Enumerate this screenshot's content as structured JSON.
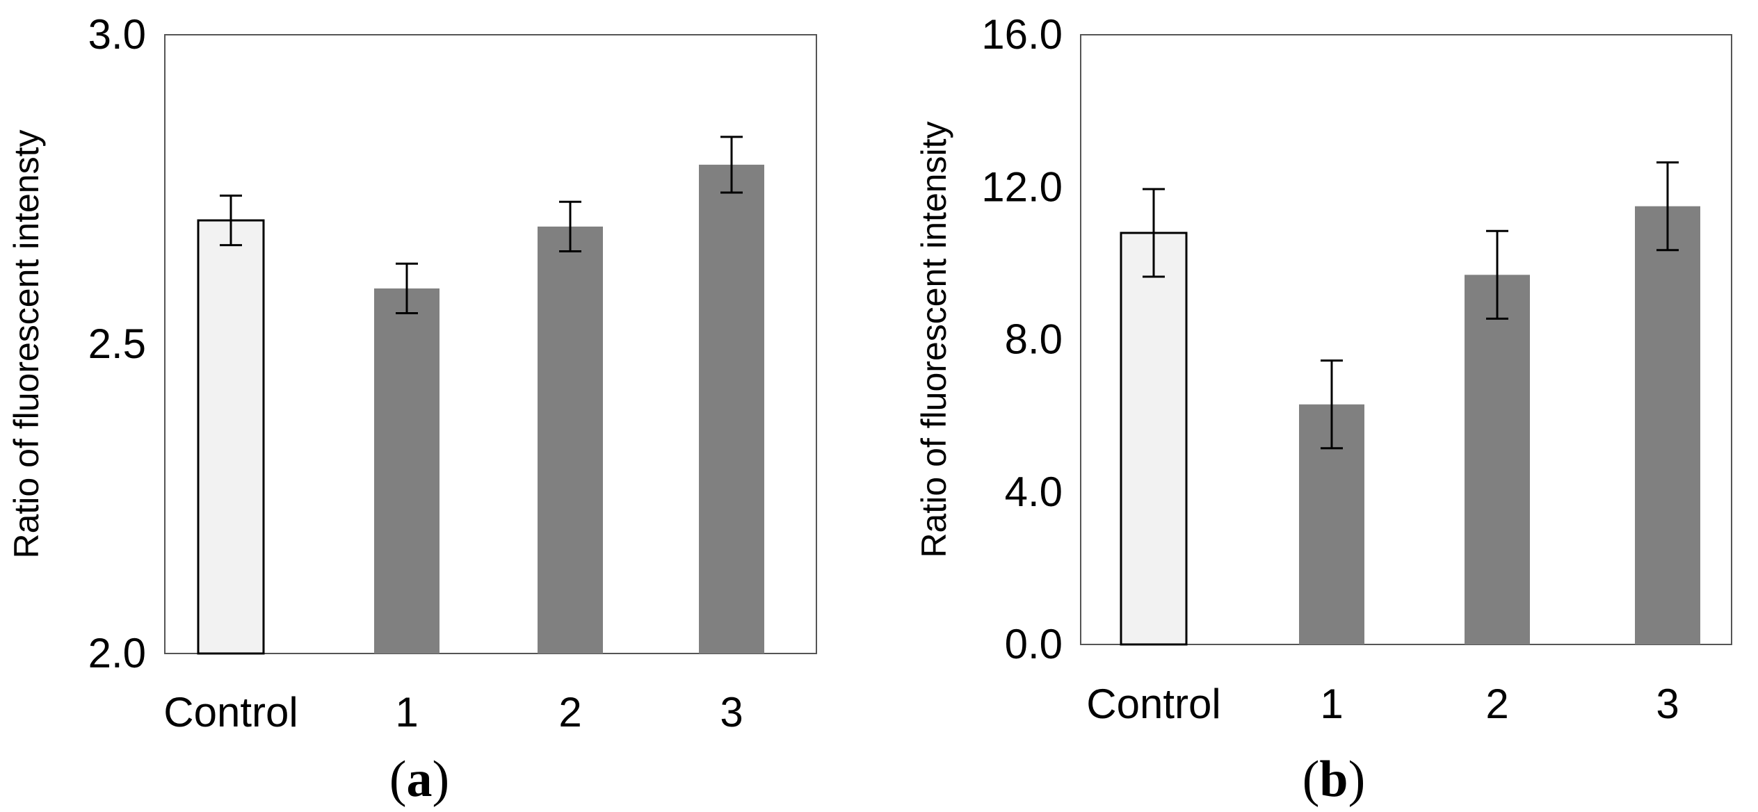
{
  "chart_data": [
    {
      "type": "bar",
      "panel_label": "a",
      "title": "",
      "xlabel": "",
      "ylabel": "Ratio of  fluorescent intensty",
      "ylim": [
        2.0,
        3.0
      ],
      "yticks": [
        "2.0",
        "2.5",
        "3.0"
      ],
      "ytick_values": [
        2.0,
        2.5,
        3.0
      ],
      "grid": false,
      "categories": [
        "Control",
        "1",
        "2",
        "3"
      ],
      "values": [
        2.7,
        2.59,
        2.69,
        2.79
      ],
      "errors": [
        0.04,
        0.04,
        0.04,
        0.045
      ],
      "bar_colors": [
        "#f2f2f2",
        "#808080",
        "#808080",
        "#808080"
      ]
    },
    {
      "type": "bar",
      "panel_label": "b",
      "title": "",
      "xlabel": "",
      "ylabel": "Ratio of fluorescent intensity",
      "ylim": [
        0.0,
        16.0
      ],
      "yticks": [
        "0.0",
        "4.0",
        "8.0",
        "12.0",
        "16.0"
      ],
      "ytick_values": [
        0.0,
        4.0,
        8.0,
        12.0,
        16.0
      ],
      "grid": false,
      "categories": [
        "Control",
        "1",
        "2",
        "3"
      ],
      "values": [
        10.8,
        6.3,
        9.7,
        11.5
      ],
      "errors": [
        1.15,
        1.15,
        1.15,
        1.15
      ],
      "bar_colors": [
        "#f2f2f2",
        "#808080",
        "#808080",
        "#808080"
      ]
    }
  ]
}
